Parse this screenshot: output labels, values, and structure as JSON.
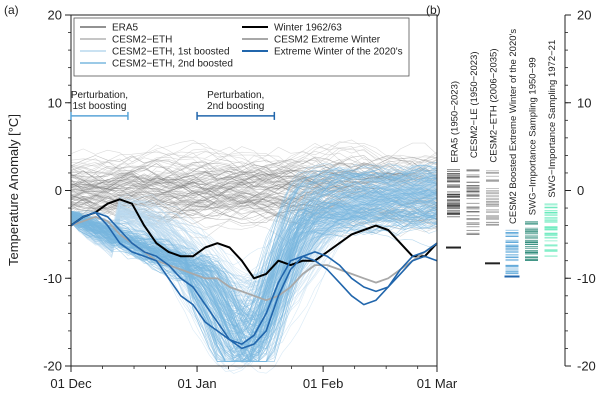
{
  "chart_data": [
    {
      "panel_label": "(a)",
      "type": "line",
      "ylabel": "Temperature Anomaly [°C]",
      "xlabel": "",
      "ylim": [
        -20,
        20
      ],
      "yticks": [
        -20,
        -10,
        0,
        10,
        20
      ],
      "xticks": [
        "01 Dec",
        "01 Jan",
        "01 Feb",
        "01 Mar"
      ],
      "xtick_days": [
        0,
        31,
        62,
        90
      ],
      "xlim_days": [
        0,
        90
      ],
      "grid": false,
      "legend_position": "top",
      "legend": [
        {
          "label": "ERA5",
          "color": "#6e6e6e"
        },
        {
          "label": "CESM2−ETH",
          "color": "#b3b3b3"
        },
        {
          "label": "CESM2−ETH, 1st boosted",
          "color": "#b9d8ee"
        },
        {
          "label": "CESM2−ETH, 2nd boosted",
          "color": "#7ab8df"
        },
        {
          "label": "Winter 1962/63",
          "color": "#000000"
        },
        {
          "label": "CESM2 Extreme Winter",
          "color": "#a8a8a8"
        },
        {
          "label": "Extreme Winter of the 2020's",
          "color": "#2166ac"
        }
      ],
      "annotations": [
        {
          "text": [
            "Perturbation,",
            "1st boosting"
          ],
          "color": "#5aa5d8",
          "x_start": 0,
          "x_end": 14,
          "y": 8.5
        },
        {
          "text": [
            "Perturbation,",
            "2nd boosting"
          ],
          "color": "#2166ac",
          "x_start": 31,
          "x_end": 50,
          "y": 8.5
        }
      ],
      "series": [
        {
          "name": "Winter 1962/63",
          "color": "#000000",
          "x": [
            0,
            3,
            6,
            9,
            12,
            15,
            18,
            21,
            24,
            27,
            30,
            33,
            36,
            39,
            42,
            45,
            48,
            51,
            54,
            57,
            60,
            63,
            66,
            69,
            72,
            75,
            78,
            81,
            84,
            87,
            90
          ],
          "values": [
            -4,
            -3,
            -2.5,
            -1.5,
            -1,
            -1.5,
            -4,
            -6,
            -7,
            -7.5,
            -7.5,
            -6.5,
            -6,
            -6.5,
            -8,
            -10,
            -9.5,
            -8,
            -8.5,
            -8,
            -8,
            -7,
            -6,
            -5,
            -4.5,
            -4,
            -4.5,
            -6,
            -7.5,
            -7.5,
            -6
          ]
        },
        {
          "name": "CESM2 Extreme Winter",
          "color": "#a8a8a8",
          "x": [
            0,
            3,
            6,
            9,
            12,
            15,
            18,
            21,
            24,
            27,
            30,
            33,
            36,
            39,
            42,
            45,
            48,
            51,
            54,
            57,
            60,
            63,
            66,
            69,
            72,
            75,
            78,
            81,
            84,
            87,
            90
          ],
          "values": [
            -4,
            -3.5,
            -3,
            -3.5,
            -5,
            -6,
            -7,
            -8,
            -8.5,
            -9,
            -9.5,
            -10,
            -10,
            -11,
            -11.5,
            -12,
            -12.5,
            -12,
            -11,
            -9.5,
            -8.5,
            -8.5,
            -9,
            -9.5,
            -10,
            -10.5,
            -10,
            -9,
            -8,
            -7,
            -6
          ]
        },
        {
          "name": "Extreme Winter of the 2020's",
          "color": "#2166ac",
          "x": [
            0,
            3,
            6,
            9,
            12,
            15,
            18,
            21,
            24,
            27,
            30,
            33,
            36,
            39,
            42,
            45,
            48,
            51,
            54,
            57,
            60,
            63,
            66,
            69,
            72,
            75,
            78,
            81,
            84,
            87,
            90
          ],
          "values": [
            -4,
            -3,
            -2.5,
            -4,
            -6,
            -7,
            -7.5,
            -8,
            -10,
            -12,
            -13,
            -15,
            -16,
            -17,
            -18,
            -17.5,
            -16,
            -12,
            -9,
            -7.5,
            -7,
            -7.5,
            -8.5,
            -10,
            -11,
            -11.5,
            -11,
            -9,
            -7.5,
            -7,
            -6
          ]
        },
        {
          "name": "Extreme Winter of the 2020's",
          "color": "#2166ac",
          "x": [
            0,
            3,
            6,
            9,
            12,
            15,
            18,
            21,
            24,
            27,
            30,
            33,
            36,
            39,
            42,
            45,
            48,
            51,
            54,
            57,
            60,
            63,
            66,
            69,
            72,
            75,
            78,
            81,
            84,
            87,
            90
          ],
          "values": [
            -4,
            -3,
            -2.5,
            -3,
            -4.5,
            -6,
            -7,
            -7.5,
            -8.5,
            -10,
            -11,
            -13,
            -15,
            -17,
            -17.5,
            -16.5,
            -14,
            -10.5,
            -8,
            -7.5,
            -8,
            -9,
            -10.5,
            -12,
            -13,
            -12.5,
            -11,
            -9.5,
            -8,
            -7.5,
            -8
          ]
        }
      ]
    },
    {
      "panel_label": "(b)",
      "type": "strip",
      "ylim": [
        -20,
        20
      ],
      "yticks": [
        -20,
        -10,
        0,
        10,
        20
      ],
      "grid": false,
      "columns": [
        {
          "label": "ERA5 (1950−2023)",
          "color": "#333333",
          "min": -3,
          "max": 2.5,
          "marker": -6.5
        },
        {
          "label": "CESM2−LE (1950−2023)",
          "color": "#666666",
          "min": -5,
          "max": 3,
          "marker": null
        },
        {
          "label": "CESM2−ETH (2006−2035)",
          "color": "#9a9a9a",
          "min": -4,
          "max": 2.5,
          "marker": -8.3
        },
        {
          "label": "CESM2 Boosted Extreme Winter of the 2020's",
          "color": "#5aa5d8",
          "min": -9.5,
          "max": -4.5,
          "marker": -9.8
        },
        {
          "label": "SWG−Importance Sampling 1950−99",
          "color": "#2e8b7a",
          "min": -8,
          "max": -3.5,
          "marker": null
        },
        {
          "label": "SWG−Importance Sampling 1972−21",
          "color": "#5fe8b8",
          "min": -7.5,
          "max": -1.5,
          "marker": null
        }
      ]
    }
  ]
}
